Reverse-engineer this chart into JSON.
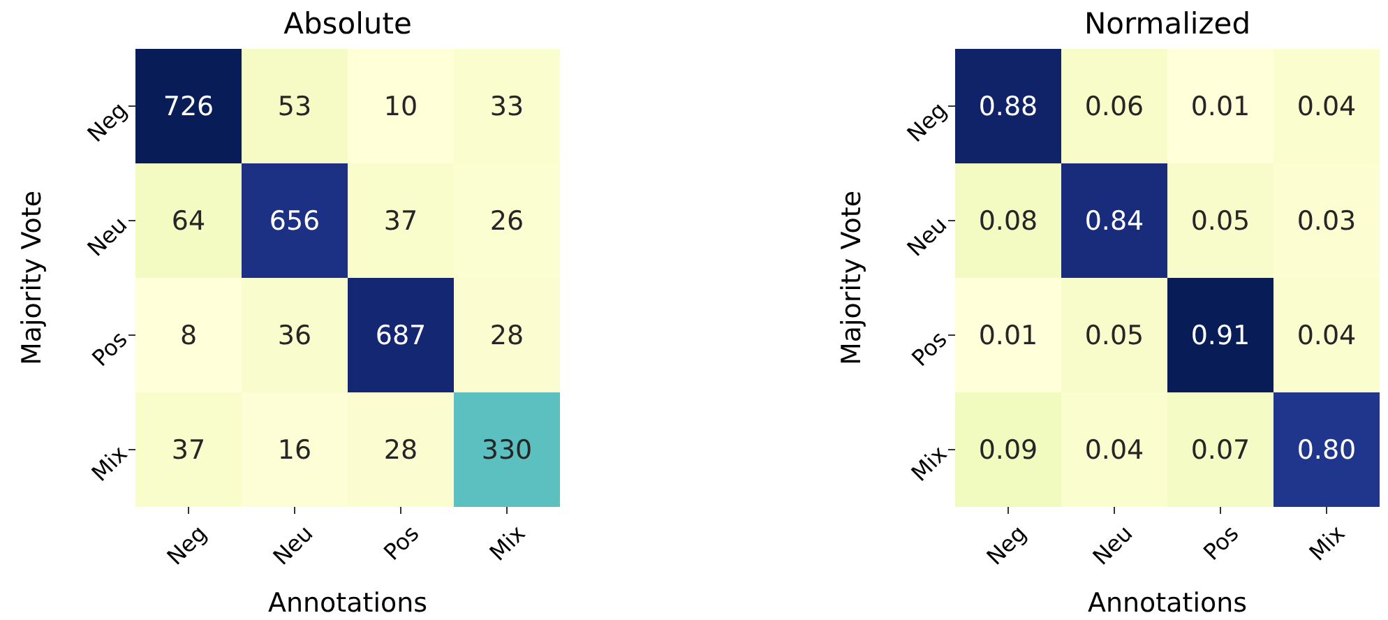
{
  "chart_data": [
    {
      "type": "heatmap",
      "title": "Absolute",
      "xlabel": "Annotations",
      "ylabel": "Majority Vote",
      "categories": [
        "Neg",
        "Neu",
        "Pos",
        "Mix"
      ],
      "y_categories": [
        "Neg",
        "Neu",
        "Pos",
        "Mix"
      ],
      "cells": [
        [
          726,
          53,
          10,
          33
        ],
        [
          64,
          656,
          37,
          26
        ],
        [
          8,
          36,
          687,
          28
        ],
        [
          37,
          16,
          28,
          330
        ]
      ],
      "data_labels": true
    },
    {
      "type": "heatmap",
      "title": "Normalized",
      "xlabel": "Annotations",
      "ylabel": "Majority Vote",
      "categories": [
        "Neg",
        "Neu",
        "Pos",
        "Mix"
      ],
      "y_categories": [
        "Neg",
        "Neu",
        "Pos",
        "Mix"
      ],
      "cells": [
        [
          0.88,
          0.06,
          0.01,
          0.04
        ],
        [
          0.08,
          0.84,
          0.05,
          0.03
        ],
        [
          0.01,
          0.05,
          0.91,
          0.04
        ],
        [
          0.09,
          0.04,
          0.07,
          0.8
        ]
      ],
      "cell_labels": [
        [
          "0.88",
          "0.06",
          "0.01",
          "0.04"
        ],
        [
          "0.08",
          "0.84",
          "0.05",
          "0.03"
        ],
        [
          "0.01",
          "0.05",
          "0.91",
          "0.04"
        ],
        [
          "0.09",
          "0.04",
          "0.07",
          "0.80"
        ]
      ]
    }
  ]
}
